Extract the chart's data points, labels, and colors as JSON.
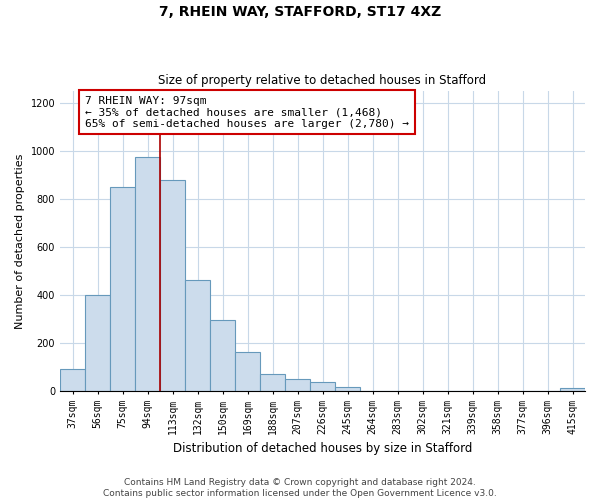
{
  "title": "7, RHEIN WAY, STAFFORD, ST17 4XZ",
  "subtitle": "Size of property relative to detached houses in Stafford",
  "xlabel": "Distribution of detached houses by size in Stafford",
  "ylabel": "Number of detached properties",
  "categories": [
    "37sqm",
    "56sqm",
    "75sqm",
    "94sqm",
    "113sqm",
    "132sqm",
    "150sqm",
    "169sqm",
    "188sqm",
    "207sqm",
    "226sqm",
    "245sqm",
    "264sqm",
    "283sqm",
    "302sqm",
    "321sqm",
    "339sqm",
    "358sqm",
    "377sqm",
    "396sqm",
    "415sqm"
  ],
  "values": [
    90,
    400,
    850,
    975,
    880,
    460,
    295,
    160,
    70,
    50,
    35,
    15,
    0,
    0,
    0,
    0,
    0,
    0,
    0,
    0,
    10
  ],
  "bar_color": "#ccdcec",
  "bar_edge_color": "#6699bb",
  "property_line_color": "#aa0000",
  "annotation_line1": "7 RHEIN WAY: 97sqm",
  "annotation_line2": "← 35% of detached houses are smaller (1,468)",
  "annotation_line3": "65% of semi-detached houses are larger (2,780) →",
  "annotation_box_edge_color": "#cc0000",
  "ylim": [
    0,
    1250
  ],
  "yticks": [
    0,
    200,
    400,
    600,
    800,
    1000,
    1200
  ],
  "footer_line1": "Contains HM Land Registry data © Crown copyright and database right 2024.",
  "footer_line2": "Contains public sector information licensed under the Open Government Licence v3.0.",
  "background_color": "#ffffff",
  "grid_color": "#c8d8e8",
  "title_fontsize": 10,
  "subtitle_fontsize": 8.5,
  "xlabel_fontsize": 8.5,
  "ylabel_fontsize": 8,
  "tick_fontsize": 7,
  "annotation_fontsize": 8,
  "footer_fontsize": 6.5
}
